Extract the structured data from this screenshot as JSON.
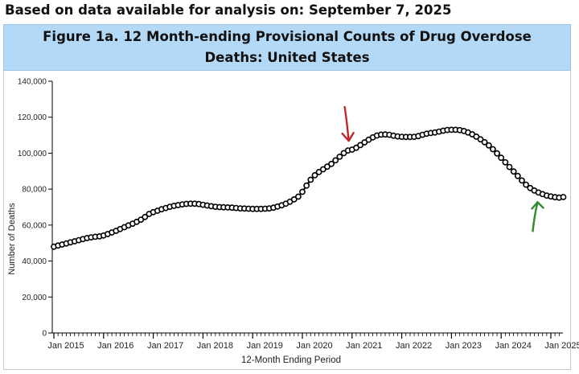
{
  "headline": "Based on data available for analysis on: September 7, 2025",
  "chart_data": {
    "type": "line",
    "title": "Figure 1a. 12 Month-ending Provisional Counts of Drug Overdose Deaths: United States",
    "xlabel": "12-Month Ending Period",
    "ylabel": "Number of Deaths",
    "ylim": [
      0,
      140000
    ],
    "y_ticks": [
      0,
      20000,
      40000,
      60000,
      80000,
      100000,
      120000,
      140000
    ],
    "y_tick_labels": [
      "0",
      "20,000",
      "40,000",
      "60,000",
      "80,000",
      "100,000",
      "120,000",
      "140,000"
    ],
    "x_tick_labels": [
      "Jan 2015",
      "Jan 2016",
      "Jan 2017",
      "Jan 2018",
      "Jan 2019",
      "Jan 2020",
      "Jan 2021",
      "Jan 2022",
      "Jan 2023",
      "Jan 2024",
      "Jan 2025"
    ],
    "x_start": "Jan 2015",
    "x_end": "Apr 2025",
    "grid": false,
    "line_color": "#000000",
    "marker": "hollow-circle",
    "annotations": [
      {
        "type": "arrow",
        "color": "#c0282d",
        "points_to": "Dec 2020"
      },
      {
        "type": "arrow",
        "color": "#2e8b2e",
        "points_to": "Oct 2024"
      }
    ],
    "series": [
      {
        "values": [
          48000,
          48600,
          49200,
          49800,
          50400,
          51000,
          51600,
          52200,
          52800,
          53200,
          53500,
          53700,
          54200,
          55000,
          55900,
          56800,
          57800,
          58800,
          59800,
          60800,
          61800,
          63000,
          64500,
          66200,
          67200,
          68000,
          68800,
          69500,
          70200,
          70700,
          71100,
          71500,
          71800,
          71900,
          71900,
          71700,
          71300,
          70900,
          70500,
          70200,
          70000,
          69900,
          69800,
          69700,
          69500,
          69300,
          69200,
          69100,
          69000,
          69000,
          69000,
          69100,
          69300,
          69700,
          70300,
          71000,
          71900,
          73000,
          74300,
          75800,
          78500,
          82000,
          85200,
          87700,
          89500,
          91000,
          92500,
          94000,
          96000,
          98000,
          100000,
          101500,
          102000,
          103000,
          104500,
          106000,
          107500,
          108800,
          109800,
          110300,
          110400,
          110200,
          109700,
          109300,
          109100,
          109000,
          109000,
          109100,
          109500,
          110200,
          110800,
          111200,
          111500,
          112000,
          112500,
          112900,
          113000,
          113000,
          112800,
          112300,
          111500,
          110500,
          109200,
          107700,
          106100,
          104300,
          102200,
          99900,
          97400,
          94900,
          92300,
          89800,
          87300,
          84800,
          82500,
          80600,
          79200,
          78100,
          77200,
          76400,
          75900,
          75500,
          75300,
          75600
        ]
      }
    ]
  }
}
